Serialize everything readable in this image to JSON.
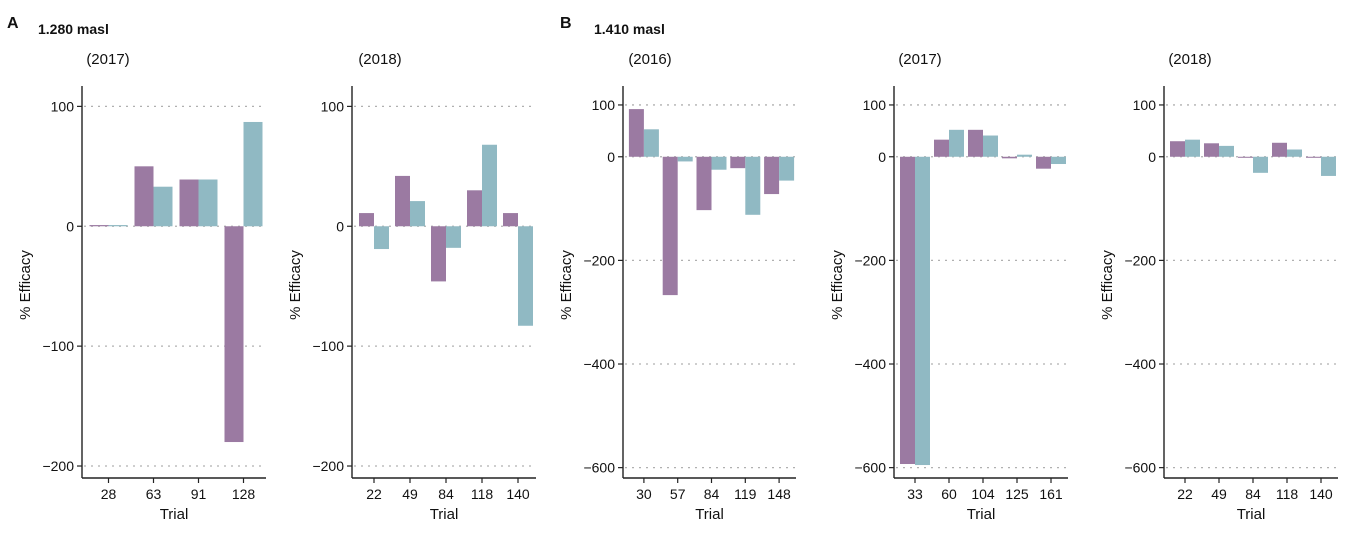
{
  "colors": {
    "series1": "#9b7aa2",
    "series2": "#90b9c3"
  },
  "panel_labels": [
    {
      "letter": "A",
      "elevation": "1.280 masl"
    },
    {
      "letter": "B",
      "elevation": "1.410 masl"
    }
  ],
  "chart_data": [
    {
      "type": "bar",
      "group": "A",
      "title": "(2017)",
      "xlabel": "Trial",
      "ylabel": "% Efficacy",
      "ylim": [
        -210,
        112
      ],
      "yticks": [
        100,
        0,
        -100,
        -200
      ],
      "grid": "horizontal dotted",
      "categories": [
        "28",
        "63",
        "91",
        "128"
      ],
      "series": [
        {
          "values": [
            1,
            50,
            39,
            -180
          ]
        },
        {
          "values": [
            1,
            33,
            39,
            87
          ]
        }
      ]
    },
    {
      "type": "bar",
      "group": "A",
      "title": "(2018)",
      "xlabel": "Trial",
      "ylabel": "% Efficacy",
      "ylim": [
        -210,
        112
      ],
      "yticks": [
        100,
        0,
        -100,
        -200
      ],
      "grid": "horizontal dotted",
      "categories": [
        "22",
        "49",
        "84",
        "118",
        "140"
      ],
      "series": [
        {
          "values": [
            11,
            42,
            -46,
            30,
            11
          ]
        },
        {
          "values": [
            -19,
            21,
            -18,
            68,
            -83
          ]
        }
      ]
    },
    {
      "type": "bar",
      "group": "B",
      "title": "(2016)",
      "xlabel": "Trial",
      "ylabel": "% Efficacy",
      "ylim": [
        -620,
        125
      ],
      "yticks": [
        100,
        0,
        -200,
        -400,
        -600
      ],
      "grid": "horizontal dotted",
      "categories": [
        "30",
        "57",
        "84",
        "119",
        "148"
      ],
      "series": [
        {
          "values": [
            92,
            -267,
            -103,
            -22,
            -72
          ]
        },
        {
          "values": [
            53,
            -9,
            -25,
            -112,
            -46
          ]
        }
      ]
    },
    {
      "type": "bar",
      "group": "B",
      "title": "(2017)",
      "xlabel": "Trial",
      "ylabel": "% Efficacy",
      "ylim": [
        -620,
        125
      ],
      "yticks": [
        100,
        0,
        -200,
        -400,
        -600
      ],
      "grid": "horizontal dotted",
      "categories": [
        "33",
        "60",
        "104",
        "125",
        "161"
      ],
      "series": [
        {
          "values": [
            -593,
            33,
            52,
            -3,
            -23
          ]
        },
        {
          "values": [
            -595,
            52,
            41,
            4,
            -14
          ]
        }
      ]
    },
    {
      "type": "bar",
      "group": "B",
      "title": "(2018)",
      "xlabel": "Trial",
      "ylabel": "% Efficacy",
      "ylim": [
        -620,
        125
      ],
      "yticks": [
        100,
        0,
        -200,
        -400,
        -600
      ],
      "grid": "horizontal dotted",
      "categories": [
        "22",
        "49",
        "84",
        "118",
        "140"
      ],
      "series": [
        {
          "values": [
            30,
            26,
            -2,
            27,
            -2
          ]
        },
        {
          "values": [
            33,
            21,
            -31,
            14,
            -37
          ]
        }
      ]
    }
  ]
}
